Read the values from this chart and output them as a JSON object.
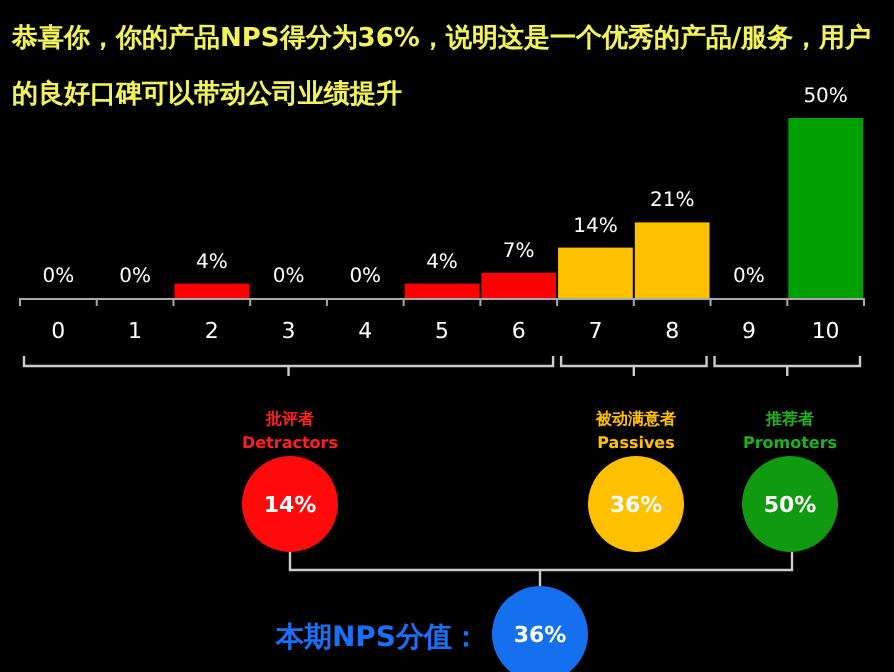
{
  "chart_data": {
    "type": "bar",
    "title": "恭喜你，你的产品NPS得分为36%，说明这是一个优秀的产品/服务，用户的良好口碑可以带动公司业绩提升",
    "categories": [
      "0",
      "1",
      "2",
      "3",
      "4",
      "5",
      "6",
      "7",
      "8",
      "9",
      "10"
    ],
    "values": [
      0,
      0,
      4,
      0,
      0,
      4,
      7,
      14,
      21,
      0,
      50
    ],
    "value_labels": [
      "0%",
      "0%",
      "4%",
      "0%",
      "0%",
      "4%",
      "7%",
      "14%",
      "21%",
      "0%",
      "50%"
    ],
    "colors": [
      "#ff0000",
      "#ff0000",
      "#ff0000",
      "#ff0000",
      "#ff0000",
      "#ff0000",
      "#ff0000",
      "#ffc000",
      "#ffc000",
      "#00a000",
      "#00a000"
    ],
    "annotations": [
      "批评者",
      "Detractors",
      "14%",
      "被动满意者",
      "Passives",
      "36%",
      "推荐者",
      "Promoters",
      "50%",
      "本期NPS分值：",
      "36%"
    ]
  }
}
